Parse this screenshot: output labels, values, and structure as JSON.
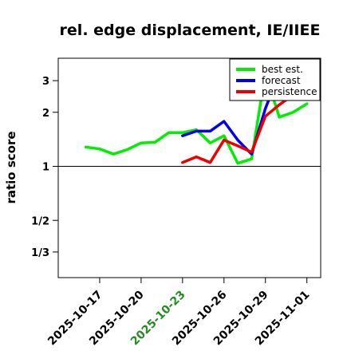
{
  "chart_data": {
    "type": "line",
    "title": "rel. edge displacement, IE/IIEE",
    "ylabel": "ratio score",
    "xlabel": "",
    "y_scale": "log",
    "ylim": [
      0.24,
      4.0
    ],
    "y_ticks": [
      {
        "value": 3,
        "label": "3"
      },
      {
        "value": 2,
        "label": "2"
      },
      {
        "value": 1,
        "label": "1"
      },
      {
        "value": 0.5,
        "label": "1/2"
      },
      {
        "value": 0.3333,
        "label": "1/3"
      }
    ],
    "reference_line": 1,
    "xlim": [
      "2025-10-14",
      "2025-11-02"
    ],
    "x_ticks": [
      {
        "date": "2025-10-17",
        "label": "2025-10-17",
        "color": "#000000"
      },
      {
        "date": "2025-10-20",
        "label": "2025-10-20",
        "color": "#000000"
      },
      {
        "date": "2025-10-23",
        "label": "2025-10-23",
        "color": "#228B22"
      },
      {
        "date": "2025-10-26",
        "label": "2025-10-26",
        "color": "#000000"
      },
      {
        "date": "2025-10-29",
        "label": "2025-10-29",
        "color": "#000000"
      },
      {
        "date": "2025-11-01",
        "label": "2025-11-01",
        "color": "#000000"
      }
    ],
    "legend_position": "top-right",
    "series": [
      {
        "name": "best est.",
        "color": "#00ee00",
        "points": [
          [
            "2025-10-16",
            1.28
          ],
          [
            "2025-10-17",
            1.25
          ],
          [
            "2025-10-18",
            1.17
          ],
          [
            "2025-10-19",
            1.24
          ],
          [
            "2025-10-20",
            1.35
          ],
          [
            "2025-10-21",
            1.36
          ],
          [
            "2025-10-22",
            1.54
          ],
          [
            "2025-10-23",
            1.54
          ],
          [
            "2025-10-24",
            1.6
          ],
          [
            "2025-10-25",
            1.35
          ],
          [
            "2025-10-26",
            1.48
          ],
          [
            "2025-10-27",
            1.04
          ],
          [
            "2025-10-28",
            1.1
          ],
          [
            "2025-10-29",
            3.3
          ],
          [
            "2025-10-30",
            1.88
          ],
          [
            "2025-10-31",
            2.0
          ],
          [
            "2025-11-01",
            2.23
          ]
        ]
      },
      {
        "name": "forecast",
        "color": "#0000ee",
        "points": [
          [
            "2025-10-23",
            1.48
          ],
          [
            "2025-10-24",
            1.57
          ],
          [
            "2025-10-25",
            1.57
          ],
          [
            "2025-10-26",
            1.78
          ],
          [
            "2025-10-27",
            1.4
          ],
          [
            "2025-10-28",
            1.17
          ],
          [
            "2025-10-29",
            2.1
          ],
          [
            "2025-10-30",
            3.3
          ]
        ]
      },
      {
        "name": "persistence",
        "color": "#ee0000",
        "points": [
          [
            "2025-10-23",
            1.05
          ],
          [
            "2025-10-24",
            1.13
          ],
          [
            "2025-10-25",
            1.05
          ],
          [
            "2025-10-26",
            1.4
          ],
          [
            "2025-10-27",
            1.3
          ],
          [
            "2025-10-28",
            1.2
          ],
          [
            "2025-10-29",
            1.9
          ],
          [
            "2025-10-30",
            2.2
          ],
          [
            "2025-10-31",
            2.5
          ],
          [
            "2025-11-01",
            2.7
          ]
        ]
      }
    ]
  }
}
